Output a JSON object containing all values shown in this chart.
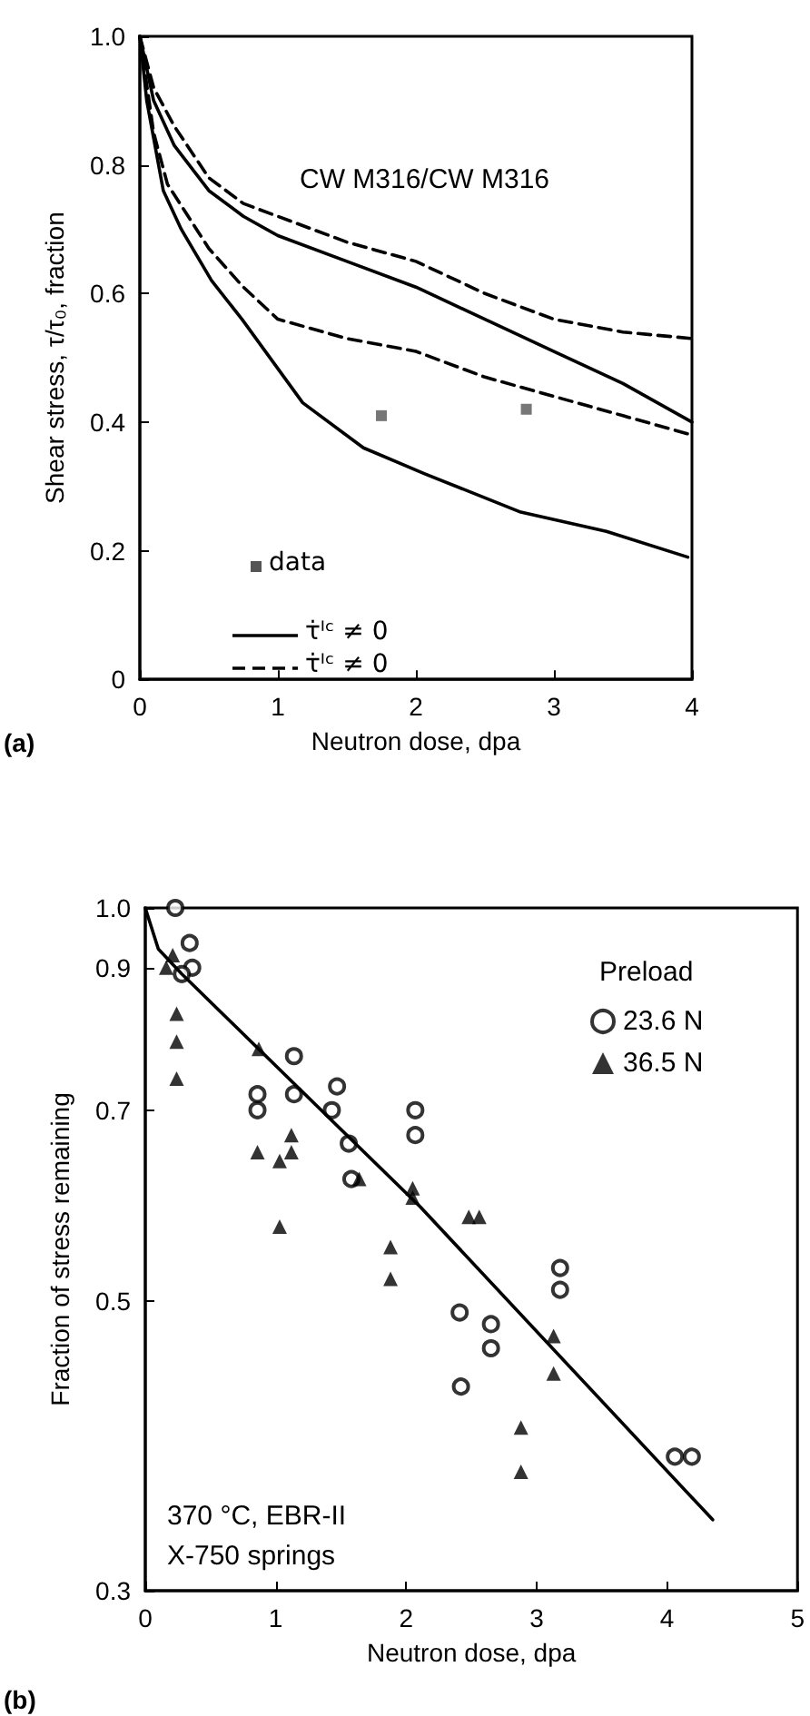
{
  "chart_data": [
    {
      "type": "line",
      "annotations": [
        "CW M316/CW M316",
        "(a)"
      ],
      "xlabel": "Neutron dose, dpa",
      "ylabel": "Shear stress, τ/τ₀, fraction",
      "xlim": [
        0,
        4
      ],
      "xticks": [
        0,
        1,
        2,
        3,
        4
      ],
      "ylim": [
        0,
        1
      ],
      "yticks": [
        0,
        0.2,
        0.4,
        0.6,
        0.8,
        {
          "value": 1,
          "label": "1.0"
        }
      ],
      "grid": false,
      "legend": "bottom left",
      "series": [
        {
          "name": "data",
          "type": "scatter",
          "marker": "square",
          "color": "#555555",
          "x": [
            1.75,
            2.8
          ],
          "values": [
            0.41,
            0.42
          ]
        },
        {
          "name": "τ̇ᴵᶜ ≠ 0",
          "color": "#000000",
          "line_style": "solid",
          "marker": "none",
          "x": [
            0,
            0.1,
            0.25,
            0.5,
            0.75,
            1,
            1.5,
            2,
            2.5,
            3,
            3.5,
            4
          ],
          "values": [
            1,
            0.9,
            0.83,
            0.76,
            0.72,
            0.69,
            0.65,
            0.61,
            0.56,
            0.51,
            0.46,
            0.4
          ]
        },
        {
          "name": "τ̇ᴵᶜ ≠ 0",
          "color": "#000000",
          "line_style": "dashed",
          "marker": "none",
          "x": [
            0,
            0.1,
            0.25,
            0.5,
            0.75,
            1,
            1.5,
            2,
            2.5,
            3,
            3.5,
            4
          ],
          "values": [
            1,
            0.92,
            0.86,
            0.78,
            0.74,
            0.72,
            0.68,
            0.65,
            0.6,
            0.56,
            0.54,
            0.53
          ]
        },
        {
          "color": "#000000",
          "line_style": "solid",
          "marker": "none",
          "x": [
            0,
            0.05,
            0.17,
            0.3,
            0.52,
            0.74,
            1.18,
            1.62,
            2.06,
            2.76,
            3.38,
            3.97
          ],
          "values": [
            1,
            0.9,
            0.76,
            0.7,
            0.62,
            0.56,
            0.43,
            0.36,
            0.32,
            0.26,
            0.23,
            0.19
          ]
        },
        {
          "color": "#000000",
          "line_style": "dashed",
          "marker": "none",
          "x": [
            0,
            0.1,
            0.2,
            0.5,
            0.75,
            1,
            1.5,
            2,
            2.5,
            3,
            3.5,
            4
          ],
          "values": [
            1,
            0.85,
            0.77,
            0.67,
            0.61,
            0.56,
            0.53,
            0.51,
            0.47,
            0.44,
            0.41,
            0.38
          ]
        }
      ]
    },
    {
      "type": "scatter",
      "annotations": [
        "370 °C, EBR-II\nX-750 springs",
        "(b)"
      ],
      "xlabel": "Neutron dose, dpa",
      "ylabel": "Fraction of stress remaining",
      "xlim": [
        0,
        5
      ],
      "xticks": [
        0,
        1,
        2,
        3,
        4,
        5
      ],
      "ylim": [
        0.3,
        1
      ],
      "yticks": [
        0.3,
        0.5,
        0.7,
        0.9,
        {
          "value": 1,
          "label": "1.0"
        }
      ],
      "log": "y",
      "grid": false,
      "legend": "top right",
      "legend_title": "Preload",
      "series": [
        {
          "name": "23.6 N",
          "marker": "circle",
          "color": "#000000",
          "x": [
            0.23,
            0.34,
            0.36,
            0.28,
            0.86,
            0.86,
            1.14,
            1.14,
            1.47,
            1.43,
            1.56,
            1.58,
            2.07,
            2.07,
            2.41,
            2.65,
            2.65,
            3.18,
            3.18,
            2.42,
            4.06,
            4.19
          ],
          "values": [
            1.0,
            0.94,
            0.9,
            0.89,
            0.72,
            0.7,
            0.77,
            0.72,
            0.73,
            0.7,
            0.66,
            0.62,
            0.7,
            0.67,
            0.49,
            0.48,
            0.46,
            0.53,
            0.51,
            0.43,
            0.38,
            0.38
          ]
        },
        {
          "name": "36.5 N",
          "marker": "triangle",
          "color": "#000000",
          "x": [
            0.21,
            0.16,
            0.24,
            0.24,
            0.24,
            0.87,
            0.86,
            1.03,
            1.12,
            1.12,
            1.03,
            1.64,
            1.88,
            1.88,
            2.05,
            2.05,
            2.48,
            2.56,
            3.13,
            3.13,
            2.88,
            2.88
          ],
          "values": [
            0.92,
            0.9,
            0.83,
            0.79,
            0.74,
            0.78,
            0.65,
            0.64,
            0.67,
            0.65,
            0.57,
            0.62,
            0.55,
            0.52,
            0.61,
            0.6,
            0.58,
            0.58,
            0.47,
            0.44,
            0.4,
            0.37
          ]
        },
        {
          "type": "line",
          "marker": "none",
          "line_style": "solid",
          "color": "#000000",
          "x": [
            0,
            0.1,
            0.28,
            2.11,
            4.35
          ],
          "values": [
            1.0,
            0.93,
            0.89,
            0.59,
            0.34
          ]
        }
      ]
    }
  ]
}
